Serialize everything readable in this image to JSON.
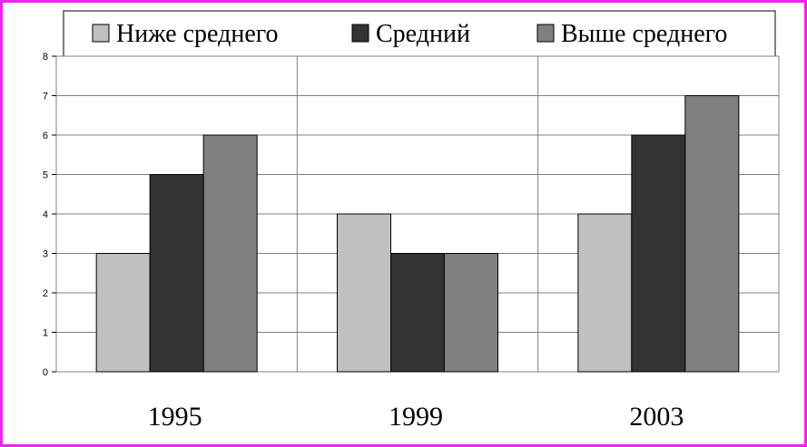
{
  "chart_data": {
    "type": "bar",
    "categories": [
      "1995",
      "1999",
      "2003"
    ],
    "series": [
      {
        "name": "Ниже среднего",
        "color": "#c0c0c0",
        "values": [
          3,
          4,
          4
        ]
      },
      {
        "name": "Средний",
        "color": "#333333",
        "values": [
          5,
          3,
          6
        ]
      },
      {
        "name": "Выше среднего",
        "color": "#808080",
        "values": [
          6,
          3,
          7
        ]
      }
    ],
    "ylim": [
      0,
      8
    ],
    "yticks": [
      "0",
      "1",
      "2",
      "3",
      "4",
      "5",
      "6",
      "7",
      "8"
    ],
    "grid": true,
    "legend_position": "top",
    "frame_color": "#ee22ee"
  }
}
